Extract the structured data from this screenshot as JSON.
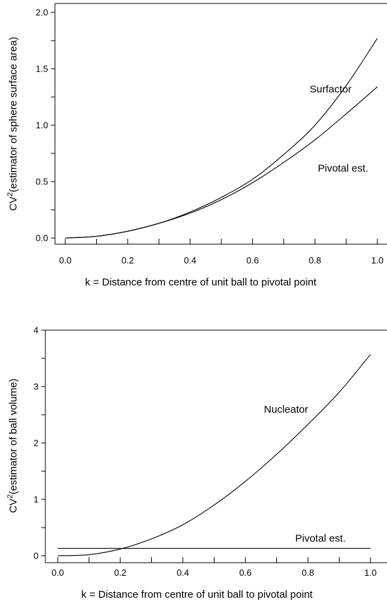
{
  "chart_data": [
    {
      "type": "line",
      "xlabel": "k = Distance from centre of unit ball to pivotal point",
      "ylabel": "CV",
      "ylabel_sup": "2",
      "ylabel_rest": "(estimator of sphere surface area)",
      "xlim": [
        0.0,
        1.0
      ],
      "ylim": [
        0.0,
        2.0
      ],
      "xticks": [
        "0.0",
        "0.2",
        "0.4",
        "0.6",
        "0.8",
        "1.0"
      ],
      "yticks": [
        "0.0",
        "0.5",
        "1.0",
        "1.5",
        "2.0"
      ],
      "grid": false,
      "series": [
        {
          "name": "Surfactor",
          "x": [
            0.0,
            0.1,
            0.2,
            0.3,
            0.4,
            0.5,
            0.6,
            0.7,
            0.8,
            0.9,
            1.0
          ],
          "y": [
            0.0,
            0.015,
            0.06,
            0.13,
            0.23,
            0.36,
            0.52,
            0.74,
            1.0,
            1.35,
            1.77
          ]
        },
        {
          "name": "Pivotal est.",
          "x": [
            0.0,
            0.1,
            0.2,
            0.3,
            0.4,
            0.5,
            0.6,
            0.7,
            0.8,
            0.9,
            1.0
          ],
          "y": [
            0.0,
            0.015,
            0.06,
            0.13,
            0.22,
            0.34,
            0.49,
            0.67,
            0.87,
            1.1,
            1.34
          ]
        }
      ],
      "annotations": [
        {
          "text": "Surfactor",
          "x": 0.85,
          "y": 1.32
        },
        {
          "text": "Pivotal est.",
          "x": 0.89,
          "y": 0.62
        }
      ]
    },
    {
      "type": "line",
      "xlabel": "k = Distance from centre of unit ball to pivotal point",
      "ylabel": "CV",
      "ylabel_sup": "2",
      "ylabel_rest": "(estimator of ball volume)",
      "xlim": [
        0.0,
        1.0
      ],
      "ylim": [
        0,
        4
      ],
      "xticks": [
        "0.0",
        "0.2",
        "0.4",
        "0.6",
        "0.8",
        "1.0"
      ],
      "yticks": [
        "0",
        "1",
        "2",
        "3",
        "4"
      ],
      "grid": false,
      "series": [
        {
          "name": "Nucleator",
          "x": [
            0.0,
            0.1,
            0.2,
            0.3,
            0.4,
            0.5,
            0.6,
            0.7,
            0.8,
            0.9,
            1.0
          ],
          "y": [
            0.0,
            0.02,
            0.12,
            0.3,
            0.55,
            0.9,
            1.32,
            1.8,
            2.33,
            2.9,
            3.57
          ]
        },
        {
          "name": "Pivotal est.",
          "x": [
            0.0,
            1.0
          ],
          "y": [
            0.13,
            0.13
          ]
        }
      ],
      "annotations": [
        {
          "text": "Nucleator",
          "x": 0.73,
          "y": 2.6
        },
        {
          "text": "Pivotal est.",
          "x": 0.84,
          "y": 0.31
        }
      ]
    }
  ]
}
